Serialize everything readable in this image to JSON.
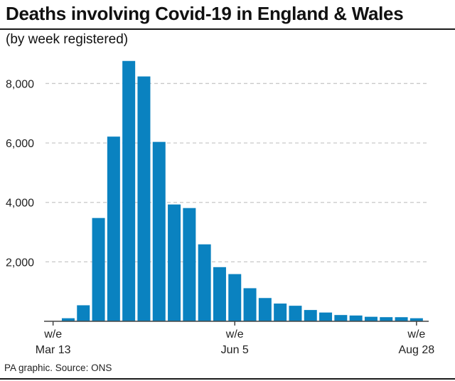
{
  "title": "Deaths involving Covid-19 in England & Wales",
  "subtitle": "(by week registered)",
  "source": "PA graphic. Source: ONS",
  "colors": {
    "bar": "#0a82c0",
    "grid": "#c8c8c8",
    "axis": "#444444",
    "text": "#222222"
  },
  "chart_data": {
    "type": "bar",
    "ylim": [
      0,
      8800
    ],
    "yticks": [
      2000,
      4000,
      6000,
      8000
    ],
    "ytick_labels": [
      "2,000",
      "4,000",
      "6,000",
      "8,000"
    ],
    "grid": true,
    "values": [
      5,
      103,
      539,
      3475,
      6213,
      8758,
      8237,
      6035,
      3930,
      3810,
      2589,
      1822,
      1588,
      1113,
      783,
      597,
      523,
      380,
      295,
      211,
      195,
      152,
      139,
      138,
      103
    ],
    "x_labels": [
      {
        "index": 0,
        "line1": "w/e",
        "line2": "Mar 13"
      },
      {
        "index": 12,
        "line1": "w/e",
        "line2": "Jun 5"
      },
      {
        "index": 24,
        "line1": "w/e",
        "line2": "Aug 28"
      }
    ]
  }
}
